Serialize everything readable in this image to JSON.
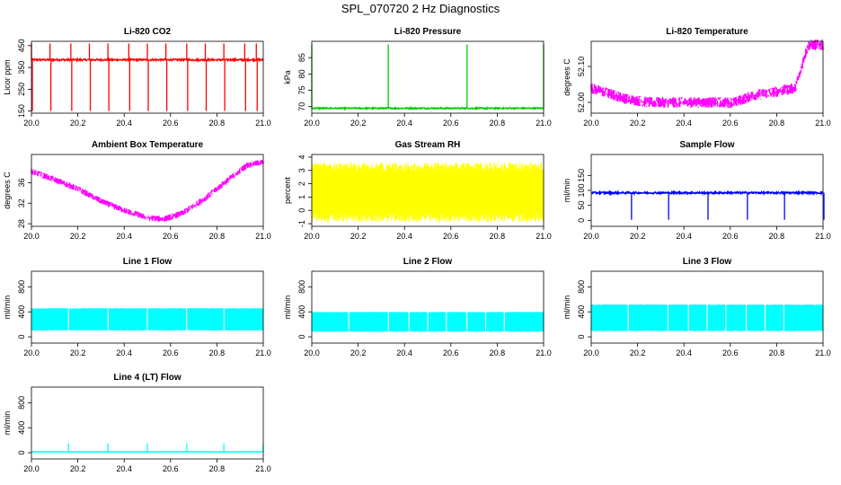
{
  "figure": {
    "title": "SPL_070720  2 Hz Diagnostics"
  },
  "chart_data": [
    {
      "type": "line",
      "title": "Li-820 CO2",
      "ylabel": "Licor ppm",
      "color": "#ff0000",
      "xlim": [
        20.0,
        21.0
      ],
      "ylim": [
        140,
        470
      ],
      "xticks": [
        "20.0",
        "20.2",
        "20.4",
        "20.6",
        "20.8",
        "21.0"
      ],
      "yticks": [
        150,
        250,
        350,
        450
      ],
      "series": [
        {
          "baseline": 385,
          "noise": 4,
          "spikes_up_to": 460,
          "spikes_down_to": 150,
          "spike_x": [
            20.0,
            20.08,
            20.17,
            20.25,
            20.33,
            20.42,
            20.5,
            20.58,
            20.67,
            20.75,
            20.83,
            20.92,
            20.97
          ]
        }
      ]
    },
    {
      "type": "line",
      "title": "Li-820 Pressure",
      "ylabel": "kPa",
      "color": "#00cc00",
      "xlim": [
        20.0,
        21.0
      ],
      "ylim": [
        68,
        90
      ],
      "xticks": [
        "20.0",
        "20.2",
        "20.4",
        "20.6",
        "20.8",
        "21.0"
      ],
      "yticks": [
        70,
        75,
        80,
        85
      ],
      "series": [
        {
          "baseline": 69.5,
          "noise": 0.2,
          "spikes_up_to": 89,
          "spike_x": [
            20.0,
            20.33,
            20.67,
            21.0
          ]
        }
      ]
    },
    {
      "type": "line",
      "title": "Li-820 Temperature",
      "ylabel": "degrees C",
      "color": "#ff00ff",
      "xlim": [
        20.0,
        21.0
      ],
      "ylim": [
        51.97,
        52.17
      ],
      "xticks": [
        "20.0",
        "20.2",
        "20.4",
        "20.6",
        "20.8",
        "21.0"
      ],
      "yticks": [
        "52.00",
        "52.10"
      ],
      "ytick_values": [
        52.0,
        52.1
      ],
      "series": [
        {
          "points": [
            [
              20.0,
              52.04
            ],
            [
              20.05,
              52.03
            ],
            [
              20.15,
              52.01
            ],
            [
              20.25,
              52.0
            ],
            [
              20.4,
              52.0
            ],
            [
              20.62,
              52.0
            ],
            [
              20.7,
              52.02
            ],
            [
              20.8,
              52.03
            ],
            [
              20.88,
              52.04
            ],
            [
              20.9,
              52.08
            ],
            [
              20.92,
              52.13
            ],
            [
              20.94,
              52.16
            ],
            [
              21.0,
              52.16
            ]
          ],
          "band": 0.015
        }
      ]
    },
    {
      "type": "line",
      "title": "Ambient Box Temperature",
      "ylabel": "degrees C",
      "color": "#ff00ff",
      "xlim": [
        20.0,
        21.0
      ],
      "ylim": [
        27.5,
        41.5
      ],
      "xticks": [
        "20.0",
        "20.2",
        "20.4",
        "20.6",
        "20.8",
        "21.0"
      ],
      "yticks": [
        28,
        32,
        36
      ],
      "series": [
        {
          "points": [
            [
              20.0,
              38.2
            ],
            [
              20.1,
              36.6
            ],
            [
              20.2,
              34.8
            ],
            [
              20.3,
              32.4
            ],
            [
              20.4,
              30.6
            ],
            [
              20.5,
              29.2
            ],
            [
              20.57,
              28.9
            ],
            [
              20.65,
              30.0
            ],
            [
              20.75,
              33.0
            ],
            [
              20.85,
              36.6
            ],
            [
              20.93,
              39.4
            ],
            [
              21.0,
              40.0
            ]
          ],
          "band": 0.6
        }
      ]
    },
    {
      "type": "area",
      "title": "Gas Stream RH",
      "ylabel": "percent",
      "color": "#ffff00",
      "xlim": [
        20.0,
        21.0
      ],
      "ylim": [
        -1.2,
        4.2
      ],
      "xticks": [
        "20.0",
        "20.2",
        "20.4",
        "20.6",
        "20.8",
        "21.0"
      ],
      "yticks": [
        -1,
        0,
        1,
        2,
        3,
        4
      ],
      "series": [
        {
          "low": -0.9,
          "high": 3.6
        }
      ]
    },
    {
      "type": "line",
      "title": "Sample Flow",
      "ylabel": "ml/min",
      "color": "#0000ff",
      "xlim": [
        20.0,
        21.0
      ],
      "ylim": [
        -20,
        220
      ],
      "xticks": [
        "20.0",
        "20.2",
        "20.4",
        "20.6",
        "20.8",
        "21.0"
      ],
      "yticks": [
        0,
        50,
        100,
        150
      ],
      "series": [
        {
          "baseline": 92,
          "noise": 3,
          "spikes_down_to": 2,
          "spike_x": [
            20.17,
            20.33,
            20.5,
            20.67,
            20.83,
            21.0
          ]
        }
      ]
    },
    {
      "type": "area",
      "title": "Line 1 Flow",
      "ylabel": "ml/min",
      "color": "#00ffff",
      "xlim": [
        20.0,
        21.0
      ],
      "ylim": [
        -100,
        1050
      ],
      "xticks": [
        "20.0",
        "20.2",
        "20.4",
        "20.6",
        "20.8",
        "21.0"
      ],
      "yticks": [
        0,
        400,
        800
      ],
      "series": [
        {
          "low": 100,
          "high": 460,
          "gaps_x": [
            20.16,
            20.33,
            20.5,
            20.67,
            20.83
          ]
        }
      ]
    },
    {
      "type": "area",
      "title": "Line 2 Flow",
      "ylabel": "ml/min",
      "color": "#00ffff",
      "xlim": [
        20.0,
        21.0
      ],
      "ylim": [
        -100,
        1050
      ],
      "xticks": [
        "20.0",
        "20.2",
        "20.4",
        "20.6",
        "20.8",
        "21.0"
      ],
      "yticks": [
        0,
        400,
        800
      ],
      "series": [
        {
          "low": 80,
          "high": 400,
          "gaps_x": [
            20.16,
            20.33,
            20.42,
            20.5,
            20.58,
            20.67,
            20.75,
            20.83
          ]
        }
      ]
    },
    {
      "type": "area",
      "title": "Line 3 Flow",
      "ylabel": "ml/min",
      "color": "#00ffff",
      "xlim": [
        20.0,
        21.0
      ],
      "ylim": [
        -100,
        1050
      ],
      "xticks": [
        "20.0",
        "20.2",
        "20.4",
        "20.6",
        "20.8",
        "21.0"
      ],
      "yticks": [
        0,
        400,
        800
      ],
      "series": [
        {
          "low": 90,
          "high": 520,
          "gaps_x": [
            20.16,
            20.33,
            20.42,
            20.5,
            20.58,
            20.67,
            20.75,
            20.83
          ]
        }
      ]
    },
    {
      "type": "line",
      "title": "Line 4 (LT) Flow",
      "ylabel": "ml/min",
      "color": "#00ffff",
      "xlim": [
        20.0,
        21.0
      ],
      "ylim": [
        -100,
        1050
      ],
      "xticks": [
        "20.0",
        "20.2",
        "20.4",
        "20.6",
        "20.8",
        "21.0"
      ],
      "yticks": [
        0,
        400,
        800
      ],
      "series": [
        {
          "baseline": 15,
          "noise": 2,
          "spikes_up_to": 150,
          "spike_x": [
            20.16,
            20.33,
            20.5,
            20.67,
            20.83,
            21.0
          ]
        }
      ]
    }
  ]
}
